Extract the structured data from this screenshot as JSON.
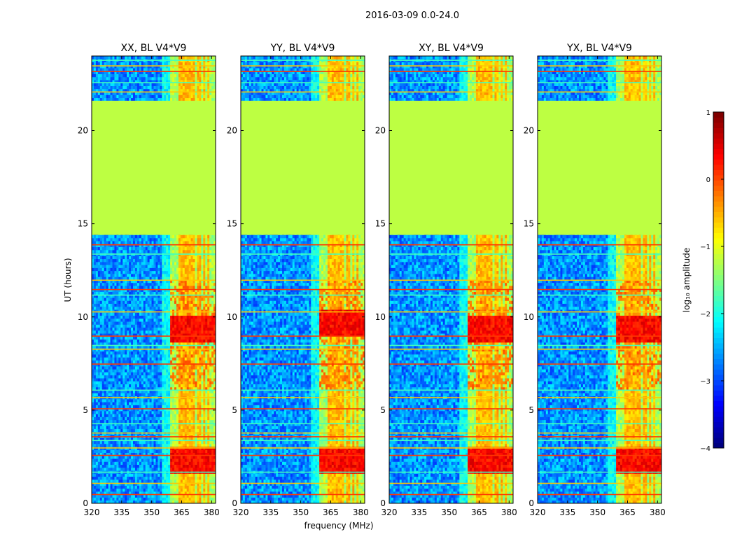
{
  "chart_data": {
    "type": "heatmap",
    "suptitle": "2016-03-09 0.0-24.0",
    "xlabel": "frequency (MHz)",
    "ylabel": "UT (hours)",
    "xlim": [
      320,
      382
    ],
    "ylim": [
      0,
      24
    ],
    "xticks": [
      320,
      335,
      350,
      365,
      380
    ],
    "yticks": [
      0,
      5,
      10,
      15,
      20
    ],
    "flagged_ut_range": [
      14.4,
      21.6
    ],
    "rfi_band_mhz": [
      359,
      382
    ],
    "panels": [
      {
        "title": "XX, BL V4*V9",
        "rfi_band_start_mhz": 359,
        "peak_ut": [
          9.3,
          2.2
        ]
      },
      {
        "title": "YY, BL V4*V9",
        "rfi_band_start_mhz": 359,
        "peak_ut": [
          9.6,
          2.2
        ]
      },
      {
        "title": "XY, BL V4*V9",
        "rfi_band_start_mhz": 359,
        "peak_ut": [
          9.3,
          2.2
        ]
      },
      {
        "title": "YX, BL V4*V9",
        "rfi_band_start_mhz": 359,
        "peak_ut": [
          9.3,
          2.2
        ]
      }
    ],
    "colorbar": {
      "label": "log₁₀ amplitude",
      "range": [
        -4,
        1
      ],
      "ticks": [
        -4,
        -3,
        -2,
        -1,
        0,
        1
      ],
      "tick_labels": [
        "−4",
        "−3",
        "−2",
        "−1",
        "0",
        "1"
      ],
      "colormap": "jet",
      "flagged_value": -1.2
    }
  }
}
